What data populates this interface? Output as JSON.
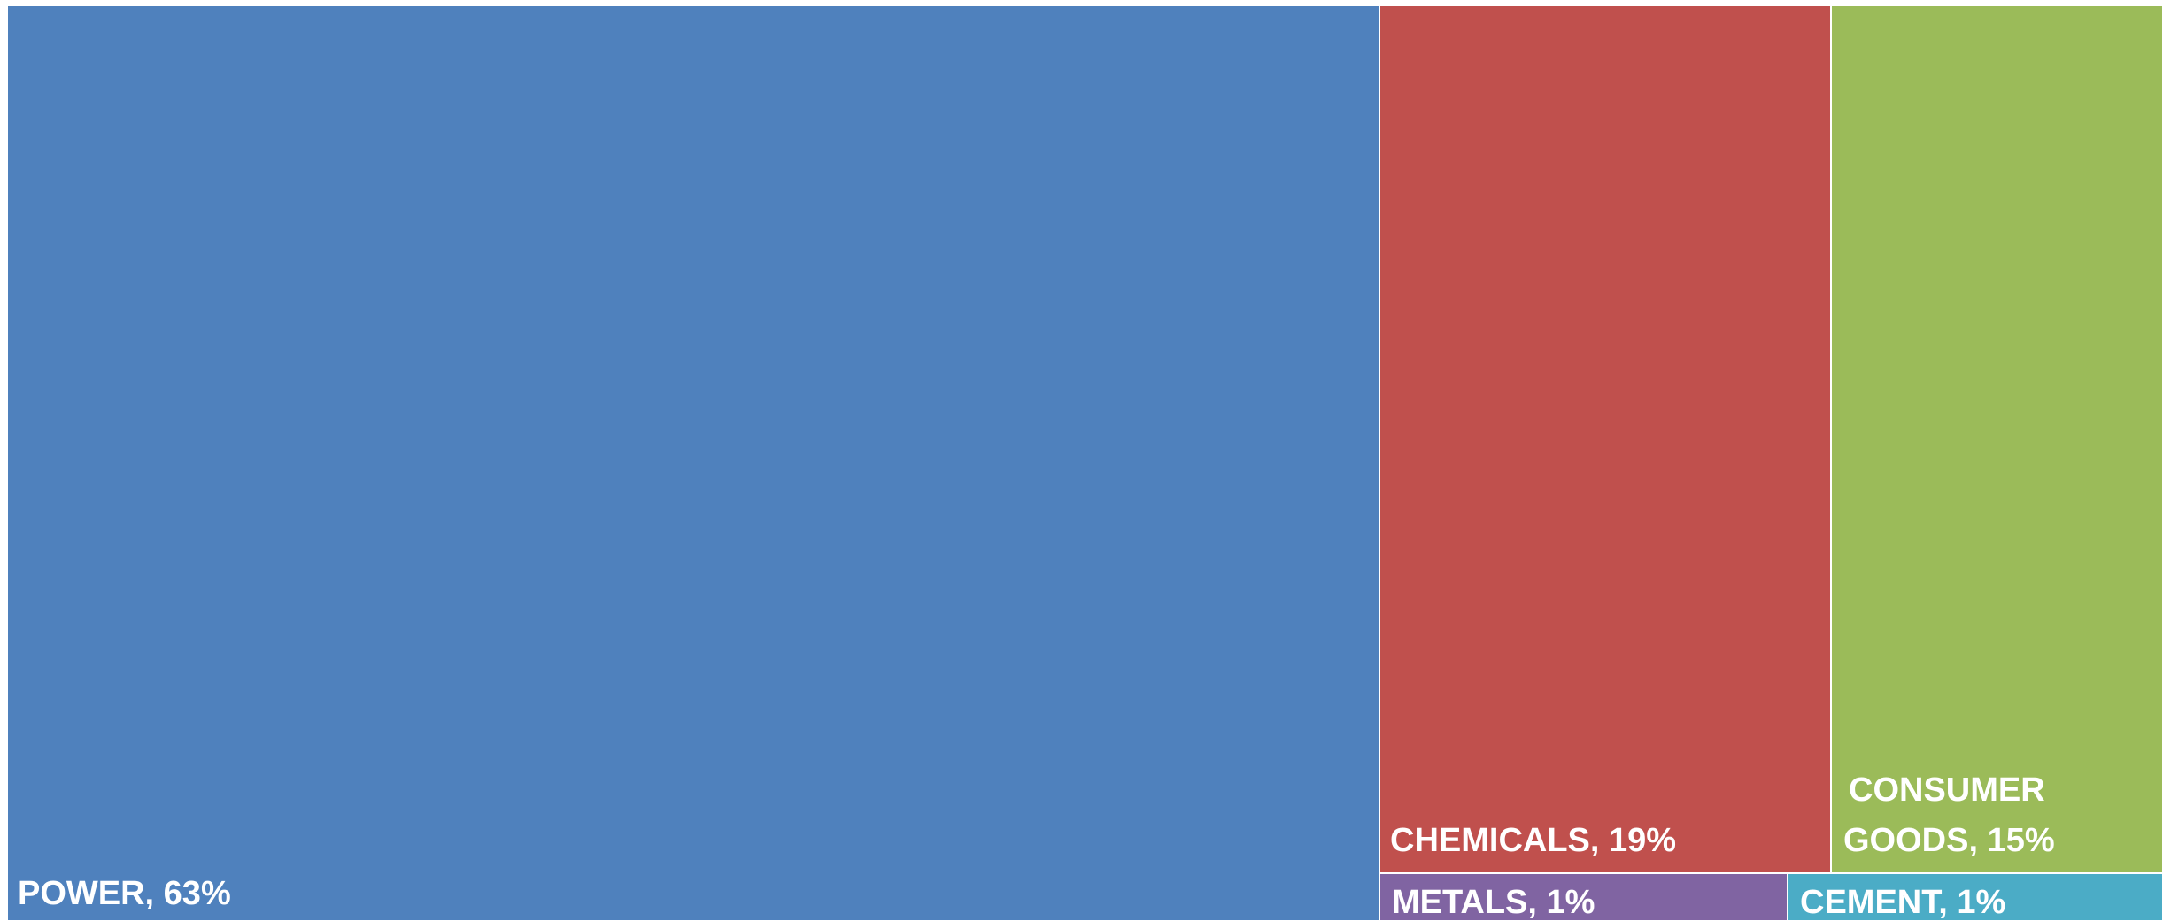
{
  "chart_data": {
    "type": "treemap",
    "title": "",
    "items": [
      {
        "name": "POWER",
        "label_lines": [
          "POWER, 63%"
        ],
        "value": 63,
        "color": "#4F81BD"
      },
      {
        "name": "CHEMICALS",
        "label_lines": [
          "CHEMICALS, 19%"
        ],
        "value": 19,
        "color": "#C0504D"
      },
      {
        "name": "CONSUMER GOODS",
        "label_lines": [
          "CONSUMER",
          "GOODS, 15%"
        ],
        "value": 15,
        "color": "#9BBB59"
      },
      {
        "name": "METALS",
        "label_lines": [
          "METALS, 1%"
        ],
        "value": 1,
        "color": "#8064A2"
      },
      {
        "name": "CEMENT",
        "label_lines": [
          "CEMENT, 1%"
        ],
        "value": 1,
        "color": "#4BACC6"
      }
    ]
  }
}
